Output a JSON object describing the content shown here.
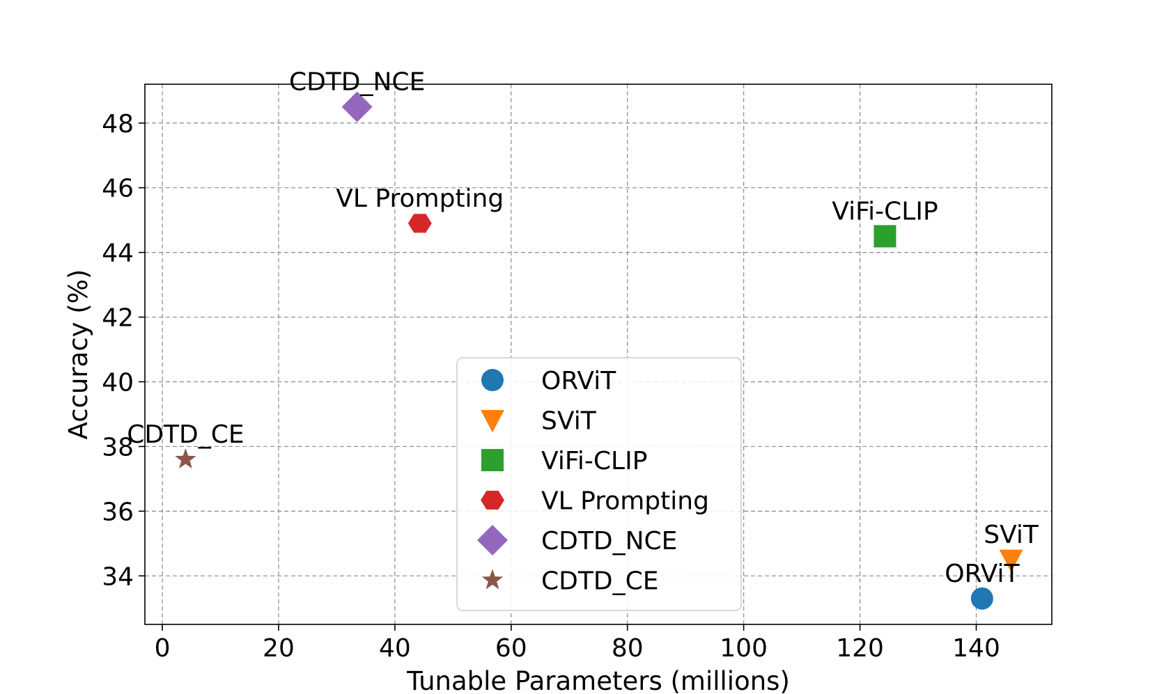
{
  "chart_data": {
    "type": "scatter",
    "title": "",
    "xlabel": "Tunable Parameters (millions)",
    "ylabel": "Accuracy (%)",
    "xlim": [
      -3,
      153
    ],
    "ylim": [
      32.5,
      49.2
    ],
    "xticks": [
      0,
      20,
      40,
      60,
      80,
      100,
      120,
      140
    ],
    "yticks": [
      34,
      36,
      38,
      40,
      42,
      44,
      46,
      48
    ],
    "grid": true,
    "legend_position": "lower-center",
    "series": [
      {
        "name": "ORViT",
        "x": 141,
        "y": 33.3,
        "marker": "circle",
        "color": "#1f77b4"
      },
      {
        "name": "SViT",
        "x": 146,
        "y": 34.5,
        "marker": "triangle-down",
        "color": "#ff7f0e"
      },
      {
        "name": "ViFi-CLIP",
        "x": 124.3,
        "y": 44.5,
        "marker": "square",
        "color": "#2ca02c"
      },
      {
        "name": "VL Prompting",
        "x": 44.3,
        "y": 44.9,
        "marker": "hexagon",
        "color": "#d62728"
      },
      {
        "name": "CDTD_NCE",
        "x": 33.5,
        "y": 48.5,
        "marker": "diamond",
        "color": "#9467bd"
      },
      {
        "name": "CDTD_CE",
        "x": 4,
        "y": 37.6,
        "marker": "star",
        "color": "#8c564b"
      }
    ]
  }
}
